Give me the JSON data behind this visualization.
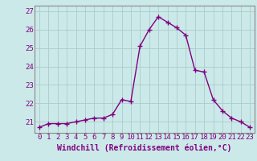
{
  "x": [
    0,
    1,
    2,
    3,
    4,
    5,
    6,
    7,
    8,
    9,
    10,
    11,
    12,
    13,
    14,
    15,
    16,
    17,
    18,
    19,
    20,
    21,
    22,
    23
  ],
  "y": [
    20.7,
    20.9,
    20.9,
    20.9,
    21.0,
    21.1,
    21.2,
    21.2,
    21.4,
    22.2,
    22.1,
    25.1,
    26.0,
    26.7,
    26.4,
    26.1,
    25.7,
    23.8,
    23.7,
    22.2,
    21.6,
    21.2,
    21.0,
    20.7
  ],
  "line_color": "#800080",
  "marker": "+",
  "markersize": 4,
  "linewidth": 1.0,
  "markeredgewidth": 1.0,
  "xlabel": "Windchill (Refroidissement éolien,°C)",
  "xlabel_fontsize": 7,
  "xticks": [
    0,
    1,
    2,
    3,
    4,
    5,
    6,
    7,
    8,
    9,
    10,
    11,
    12,
    13,
    14,
    15,
    16,
    17,
    18,
    19,
    20,
    21,
    22,
    23
  ],
  "yticks": [
    21,
    22,
    23,
    24,
    25,
    26,
    27
  ],
  "ylim": [
    20.4,
    27.3
  ],
  "xlim": [
    -0.5,
    23.5
  ],
  "tick_fontsize": 6.5,
  "bg_color": "#cce9e9",
  "grid_color": "#aacccc",
  "spine_color": "#888888"
}
